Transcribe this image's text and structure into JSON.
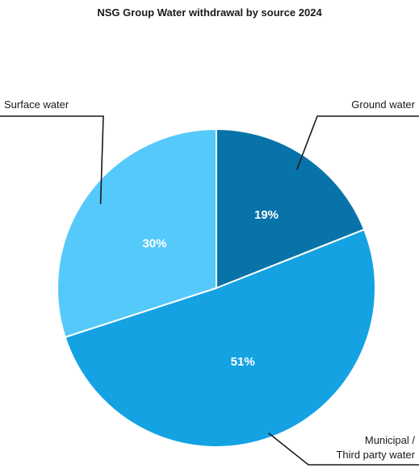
{
  "chart_data": {
    "type": "pie",
    "title": "NSG Group Water withdrawal by source 2024",
    "slices": [
      {
        "label": "Ground water",
        "value": 19,
        "value_label": "19%",
        "color": "#0873a8"
      },
      {
        "label": "Municipal / Third party water",
        "label_lines": [
          "Municipal /",
          "Third party water"
        ],
        "value": 51,
        "value_label": "51%",
        "color": "#14a2e3"
      },
      {
        "label": "Surface water",
        "value": 30,
        "value_label": "30%",
        "color": "#56c9fb"
      }
    ],
    "start": "12 o'clock",
    "direction": "clockwise",
    "legend": "callout labels with leader lines"
  }
}
